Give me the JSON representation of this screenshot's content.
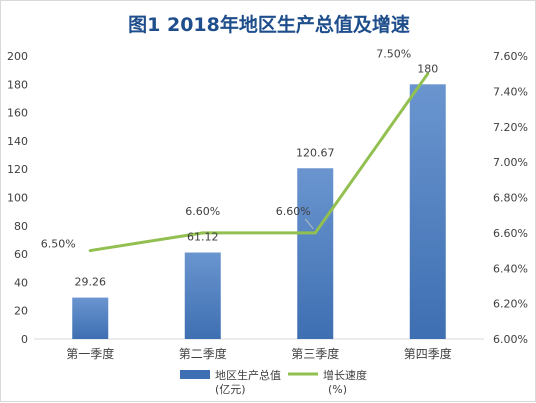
{
  "chart_data": {
    "type": "bar+line",
    "title": "图1 2018年地区生产总值及增速",
    "categories": [
      "第一季度",
      "第二季度",
      "第三季度",
      "第四季度"
    ],
    "series": [
      {
        "name": "地区生产总值(亿元)",
        "type": "bar",
        "axis": "left",
        "values": [
          29.26,
          61.12,
          120.67,
          180
        ],
        "labels": [
          "29.26",
          "61.12",
          "120.67",
          "180"
        ],
        "color": "#3e6fb2"
      },
      {
        "name": "增长速度(%)",
        "type": "line",
        "axis": "right",
        "values": [
          6.5,
          6.6,
          6.6,
          7.5
        ],
        "labels": [
          "6.50%",
          "6.60%",
          "6.60%",
          "7.50%"
        ],
        "color": "#92c050"
      }
    ],
    "y_left": {
      "min": 0,
      "max": 200,
      "step": 20,
      "ticks": [
        "0",
        "20",
        "40",
        "60",
        "80",
        "100",
        "120",
        "140",
        "160",
        "180",
        "200"
      ]
    },
    "y_right": {
      "min": 6.0,
      "max": 7.6,
      "step": 0.2,
      "ticks": [
        "6.00%",
        "6.20%",
        "6.40%",
        "6.60%",
        "6.80%",
        "7.00%",
        "7.20%",
        "7.40%",
        "7.60%"
      ]
    },
    "legend": {
      "position": "bottom",
      "items": [
        {
          "line1": "地区生产总值",
          "line2": "(亿元)"
        },
        {
          "line1": "增长速度",
          "line2": "(%)"
        }
      ]
    },
    "grid": false
  }
}
